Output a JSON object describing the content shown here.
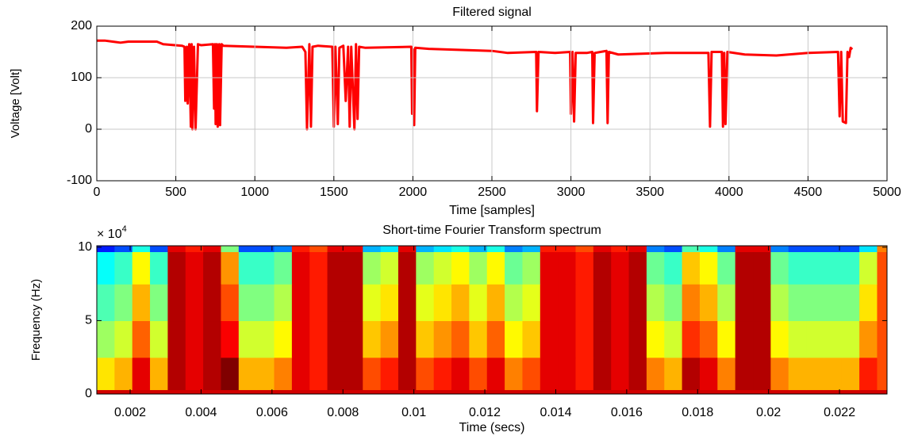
{
  "chart_data": [
    {
      "type": "line",
      "title": "Filtered signal",
      "xlabel": "Time [samples]",
      "ylabel": "Voltage [Volt]",
      "xlim": [
        0,
        5000
      ],
      "xticks": [
        0,
        500,
        1000,
        1500,
        2000,
        2500,
        3000,
        3500,
        4000,
        4500,
        5000
      ],
      "ylim": [
        -100,
        200
      ],
      "yticks": [
        -100,
        0,
        100,
        200
      ],
      "grid": true,
      "x": [
        0,
        50,
        100,
        150,
        200,
        380,
        420,
        540,
        555,
        560,
        570,
        575,
        585,
        595,
        600,
        605,
        615,
        625,
        640,
        660,
        735,
        742,
        748,
        752,
        760,
        765,
        775,
        780,
        790,
        800,
        1000,
        1200,
        1300,
        1320,
        1330,
        1345,
        1355,
        1365,
        1400,
        1490,
        1500,
        1510,
        1525,
        1535,
        1560,
        1575,
        1590,
        1600,
        1610,
        1630,
        1640,
        1650,
        1660,
        1700,
        1990,
        1995,
        2000,
        2008,
        2015,
        2100,
        2500,
        2600,
        2780,
        2785,
        2795,
        2900,
        2995,
        3000,
        3010,
        3020,
        3030,
        3100,
        3135,
        3140,
        3150,
        3225,
        3232,
        3240,
        3300,
        3600,
        3870,
        3880,
        3890,
        3955,
        3962,
        3970,
        3978,
        3990,
        4100,
        4300,
        4500,
        4690,
        4700,
        4710,
        4720,
        4740,
        4750,
        4760,
        4770,
        4780
      ],
      "series": [
        {
          "color": "#ff0000",
          "values": [
            172,
            172,
            170,
            168,
            170,
            170,
            165,
            162,
            160,
            55,
            160,
            50,
            165,
            5,
            165,
            0,
            160,
            0,
            165,
            163,
            165,
            40,
            165,
            10,
            165,
            5,
            165,
            8,
            165,
            162,
            160,
            158,
            160,
            150,
            0,
            165,
            5,
            160,
            162,
            160,
            5,
            160,
            10,
            158,
            162,
            55,
            160,
            5,
            160,
            0,
            165,
            20,
            160,
            158,
            160,
            30,
            155,
            8,
            158,
            156,
            152,
            148,
            150,
            35,
            150,
            148,
            150,
            30,
            150,
            15,
            148,
            148,
            150,
            12,
            148,
            152,
            12,
            150,
            145,
            148,
            148,
            5,
            150,
            150,
            5,
            148,
            10,
            150,
            145,
            143,
            148,
            150,
            25,
            150,
            15,
            12,
            150,
            140,
            158,
            155
          ]
        }
      ]
    },
    {
      "type": "heatmap",
      "title": "Short-time Fourier Transform spectrum",
      "xlabel": "Time (secs)",
      "ylabel": "Frequency (Hz)",
      "y_multiplier_base": "× 10",
      "y_multiplier_exponent": "4",
      "xlim": [
        0.00106,
        0.02334
      ],
      "xticks": [
        0.002,
        0.004,
        0.006,
        0.008,
        0.01,
        0.012,
        0.014,
        0.016,
        0.018,
        0.02,
        0.022
      ],
      "ylim": [
        0,
        101000
      ],
      "yticks": [
        {
          "value": 0,
          "label": "0"
        },
        {
          "value": 50000,
          "label": "5"
        },
        {
          "value": 100000,
          "label": "10"
        }
      ],
      "grid": false,
      "colormap": "jet",
      "clim": [
        0,
        1
      ],
      "xbins": [
        0.00106,
        0.00156,
        0.00206,
        0.00256,
        0.00306,
        0.00356,
        0.00406,
        0.00456,
        0.00506,
        0.00556,
        0.00606,
        0.00656,
        0.00706,
        0.00756,
        0.00806,
        0.00856,
        0.00906,
        0.00956,
        0.01006,
        0.01056,
        0.01106,
        0.01156,
        0.01206,
        0.01256,
        0.01306,
        0.01356,
        0.01406,
        0.01456,
        0.01506,
        0.01556,
        0.01606,
        0.01656,
        0.01706,
        0.01756,
        0.01806,
        0.01856,
        0.01906,
        0.01956,
        0.02006,
        0.02056,
        0.02106,
        0.02156,
        0.02206,
        0.02256,
        0.02306,
        0.02334
      ],
      "ybins": [
        0,
        3000,
        25000,
        50000,
        75000,
        97000,
        101000
      ],
      "z": [
        [
          0.92,
          0.92,
          0.92,
          0.92,
          0.92,
          0.92,
          0.92,
          0.92,
          0.92,
          0.92,
          0.92,
          0.92,
          0.92,
          0.92,
          0.92,
          0.92,
          0.92,
          0.92,
          0.92,
          0.92,
          0.92,
          0.92,
          0.92,
          0.92,
          0.92,
          0.92,
          0.92,
          0.92,
          0.92,
          0.92,
          0.92,
          0.92,
          0.92,
          0.92,
          0.92,
          0.92,
          0.92,
          0.92,
          0.92,
          0.92,
          0.92,
          0.92,
          0.92,
          0.92,
          0.92
        ],
        [
          0.65,
          0.7,
          0.9,
          0.7,
          0.95,
          0.9,
          0.95,
          1.0,
          0.7,
          0.7,
          0.75,
          0.9,
          0.85,
          0.95,
          0.95,
          0.8,
          0.85,
          0.95,
          0.8,
          0.85,
          0.9,
          0.8,
          0.9,
          0.75,
          0.8,
          0.9,
          0.9,
          0.85,
          0.95,
          0.9,
          0.95,
          0.75,
          0.7,
          0.95,
          0.9,
          0.75,
          0.95,
          0.95,
          0.75,
          0.7,
          0.7,
          0.7,
          0.7,
          0.85,
          0.8
        ],
        [
          0.53,
          0.58,
          0.78,
          0.58,
          0.95,
          0.9,
          0.95,
          0.88,
          0.58,
          0.58,
          0.63,
          0.9,
          0.85,
          0.95,
          0.95,
          0.68,
          0.73,
          0.95,
          0.68,
          0.73,
          0.78,
          0.68,
          0.78,
          0.63,
          0.68,
          0.9,
          0.9,
          0.85,
          0.95,
          0.9,
          0.95,
          0.63,
          0.58,
          0.83,
          0.78,
          0.63,
          0.95,
          0.95,
          0.63,
          0.58,
          0.58,
          0.58,
          0.58,
          0.73,
          0.8
        ],
        [
          0.45,
          0.5,
          0.7,
          0.5,
          0.95,
          0.9,
          0.95,
          0.8,
          0.5,
          0.5,
          0.55,
          0.9,
          0.85,
          0.95,
          0.95,
          0.6,
          0.65,
          0.95,
          0.6,
          0.65,
          0.7,
          0.6,
          0.7,
          0.55,
          0.6,
          0.9,
          0.9,
          0.85,
          0.95,
          0.9,
          0.95,
          0.55,
          0.5,
          0.75,
          0.7,
          0.55,
          0.95,
          0.95,
          0.55,
          0.5,
          0.5,
          0.5,
          0.5,
          0.65,
          0.8
        ],
        [
          0.38,
          0.43,
          0.63,
          0.43,
          0.95,
          0.9,
          0.95,
          0.73,
          0.43,
          0.43,
          0.48,
          0.9,
          0.85,
          0.95,
          0.95,
          0.53,
          0.58,
          0.95,
          0.53,
          0.58,
          0.63,
          0.53,
          0.63,
          0.48,
          0.53,
          0.9,
          0.9,
          0.85,
          0.95,
          0.9,
          0.95,
          0.48,
          0.43,
          0.68,
          0.63,
          0.48,
          0.95,
          0.95,
          0.48,
          0.43,
          0.43,
          0.43,
          0.43,
          0.58,
          0.8
        ],
        [
          0.15,
          0.2,
          0.4,
          0.2,
          0.9,
          0.85,
          0.9,
          0.5,
          0.2,
          0.2,
          0.25,
          0.85,
          0.8,
          0.9,
          0.9,
          0.3,
          0.35,
          0.9,
          0.3,
          0.35,
          0.4,
          0.3,
          0.4,
          0.25,
          0.3,
          0.85,
          0.85,
          0.8,
          0.9,
          0.85,
          0.9,
          0.25,
          0.2,
          0.45,
          0.4,
          0.25,
          0.9,
          0.9,
          0.25,
          0.2,
          0.2,
          0.2,
          0.2,
          0.35,
          0.75
        ]
      ]
    }
  ]
}
